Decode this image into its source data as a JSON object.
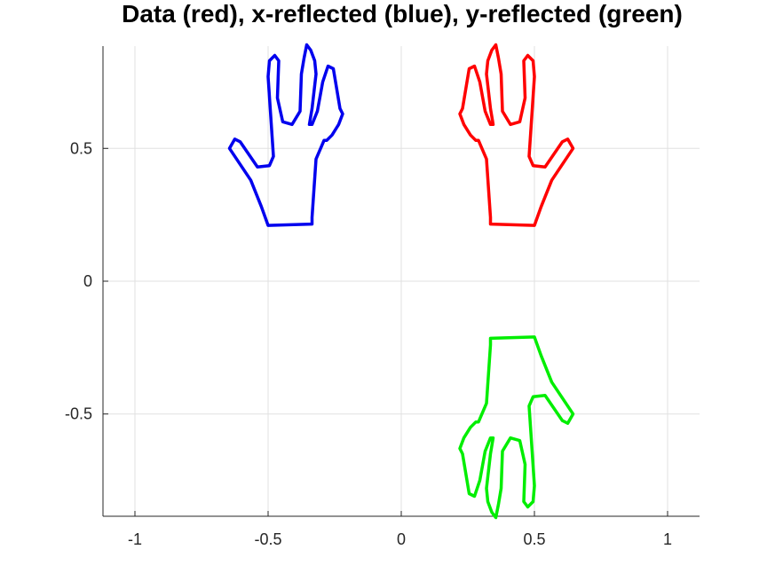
{
  "chart_data": {
    "type": "line",
    "title": "Data (red), x-reflected (blue), y-reflected (green)",
    "xlabel": "",
    "ylabel": "",
    "xlim": [
      -1.12,
      1.12
    ],
    "ylim": [
      -0.885,
      0.885
    ],
    "grid": true,
    "x_ticks": [
      -1,
      -0.5,
      0,
      0.5,
      1
    ],
    "x_tick_labels": [
      "-1",
      "-0.5",
      "0",
      "0.5",
      "1"
    ],
    "y_ticks": [
      -0.5,
      0,
      0.5
    ],
    "y_tick_labels": [
      "-0.5",
      "0",
      "0.5"
    ],
    "series": [
      {
        "color": "#ff0000",
        "x": [
          0.335,
          0.5,
          0.525,
          0.565,
          0.645,
          0.625,
          0.605,
          0.54,
          0.495,
          0.48,
          0.49,
          0.5,
          0.495,
          0.475,
          0.46,
          0.465,
          0.445,
          0.41,
          0.38,
          0.375,
          0.365,
          0.355,
          0.34,
          0.325,
          0.32,
          0.335,
          0.345,
          0.335,
          0.315,
          0.295,
          0.275,
          0.255,
          0.23,
          0.22,
          0.235,
          0.26,
          0.28,
          0.29,
          0.32,
          0.335
        ],
        "y": [
          0.215,
          0.21,
          0.28,
          0.38,
          0.5,
          0.535,
          0.525,
          0.43,
          0.435,
          0.47,
          0.62,
          0.77,
          0.83,
          0.85,
          0.83,
          0.69,
          0.6,
          0.59,
          0.64,
          0.78,
          0.84,
          0.89,
          0.87,
          0.83,
          0.78,
          0.65,
          0.59,
          0.59,
          0.64,
          0.75,
          0.81,
          0.8,
          0.65,
          0.63,
          0.59,
          0.55,
          0.53,
          0.53,
          0.46,
          0.24
        ]
      },
      {
        "color": "#0000ee",
        "x": [
          -0.335,
          -0.5,
          -0.525,
          -0.565,
          -0.645,
          -0.625,
          -0.605,
          -0.54,
          -0.495,
          -0.48,
          -0.49,
          -0.5,
          -0.495,
          -0.475,
          -0.46,
          -0.465,
          -0.445,
          -0.41,
          -0.38,
          -0.375,
          -0.365,
          -0.355,
          -0.34,
          -0.325,
          -0.32,
          -0.335,
          -0.345,
          -0.335,
          -0.315,
          -0.295,
          -0.275,
          -0.255,
          -0.23,
          -0.22,
          -0.235,
          -0.26,
          -0.28,
          -0.29,
          -0.32,
          -0.335
        ],
        "y": [
          0.215,
          0.21,
          0.28,
          0.38,
          0.5,
          0.535,
          0.525,
          0.43,
          0.435,
          0.47,
          0.62,
          0.77,
          0.83,
          0.85,
          0.83,
          0.69,
          0.6,
          0.59,
          0.64,
          0.78,
          0.84,
          0.89,
          0.87,
          0.83,
          0.78,
          0.65,
          0.59,
          0.59,
          0.64,
          0.75,
          0.81,
          0.8,
          0.65,
          0.63,
          0.59,
          0.55,
          0.53,
          0.53,
          0.46,
          0.24
        ]
      },
      {
        "color": "#00ee00",
        "x": [
          0.335,
          0.5,
          0.525,
          0.565,
          0.645,
          0.625,
          0.605,
          0.54,
          0.495,
          0.48,
          0.49,
          0.5,
          0.495,
          0.475,
          0.46,
          0.465,
          0.445,
          0.41,
          0.38,
          0.375,
          0.365,
          0.355,
          0.34,
          0.325,
          0.32,
          0.335,
          0.345,
          0.335,
          0.315,
          0.295,
          0.275,
          0.255,
          0.23,
          0.22,
          0.235,
          0.26,
          0.28,
          0.29,
          0.32,
          0.335
        ],
        "y": [
          -0.215,
          -0.21,
          -0.28,
          -0.38,
          -0.5,
          -0.535,
          -0.525,
          -0.43,
          -0.435,
          -0.47,
          -0.62,
          -0.77,
          -0.83,
          -0.85,
          -0.83,
          -0.69,
          -0.6,
          -0.59,
          -0.64,
          -0.78,
          -0.84,
          -0.89,
          -0.87,
          -0.83,
          -0.78,
          -0.65,
          -0.59,
          -0.59,
          -0.64,
          -0.75,
          -0.81,
          -0.8,
          -0.65,
          -0.63,
          -0.59,
          -0.55,
          -0.53,
          -0.53,
          -0.46,
          -0.24
        ]
      }
    ]
  }
}
